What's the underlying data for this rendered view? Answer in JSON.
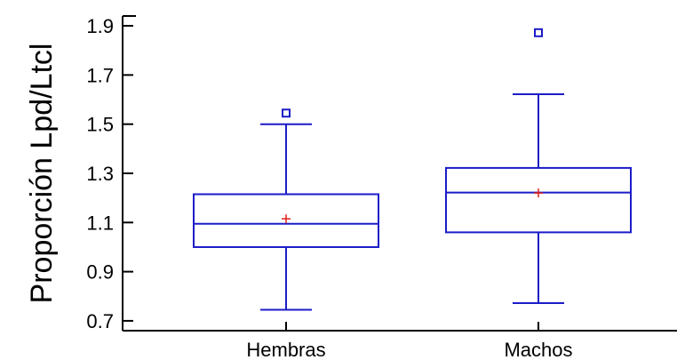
{
  "chart_data": {
    "type": "box",
    "title": "",
    "xlabel": "",
    "ylabel": "Proporción Lpd/Ltcl",
    "ylim": [
      0.66,
      1.94
    ],
    "yticks": [
      0.7,
      0.9,
      1.1,
      1.3,
      1.5,
      1.7,
      1.9
    ],
    "ytick_labels": [
      "0.7",
      "0.9",
      "1.1",
      "1.3",
      "1.5",
      "1.7",
      "1.9"
    ],
    "grid": false,
    "categories": [
      "Hembras",
      "Machos"
    ],
    "boxes": [
      {
        "category": "Hembras",
        "whisker_low": 0.745,
        "q1": 1.0,
        "median": 1.095,
        "q3": 1.215,
        "whisker_high": 1.5,
        "mean": 1.115,
        "outliers": [
          1.545
        ]
      },
      {
        "category": "Machos",
        "whisker_low": 0.772,
        "q1": 1.06,
        "median": 1.222,
        "q3": 1.322,
        "whisker_high": 1.622,
        "mean": 1.22,
        "outliers": [
          1.872
        ]
      }
    ],
    "colors": {
      "box": "#1c1cc8",
      "mean": "#e0201c",
      "outlier": "#1c1cc8",
      "axis": "#000000"
    }
  }
}
